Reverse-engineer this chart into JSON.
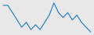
{
  "values": [
    20,
    20,
    17,
    14,
    11,
    13,
    10,
    12,
    10,
    13,
    16,
    21,
    17,
    15,
    17,
    14,
    16,
    13,
    11,
    9
  ],
  "line_color": "#1a7abf",
  "background_color": "#e8e8e8",
  "linewidth": 0.8
}
